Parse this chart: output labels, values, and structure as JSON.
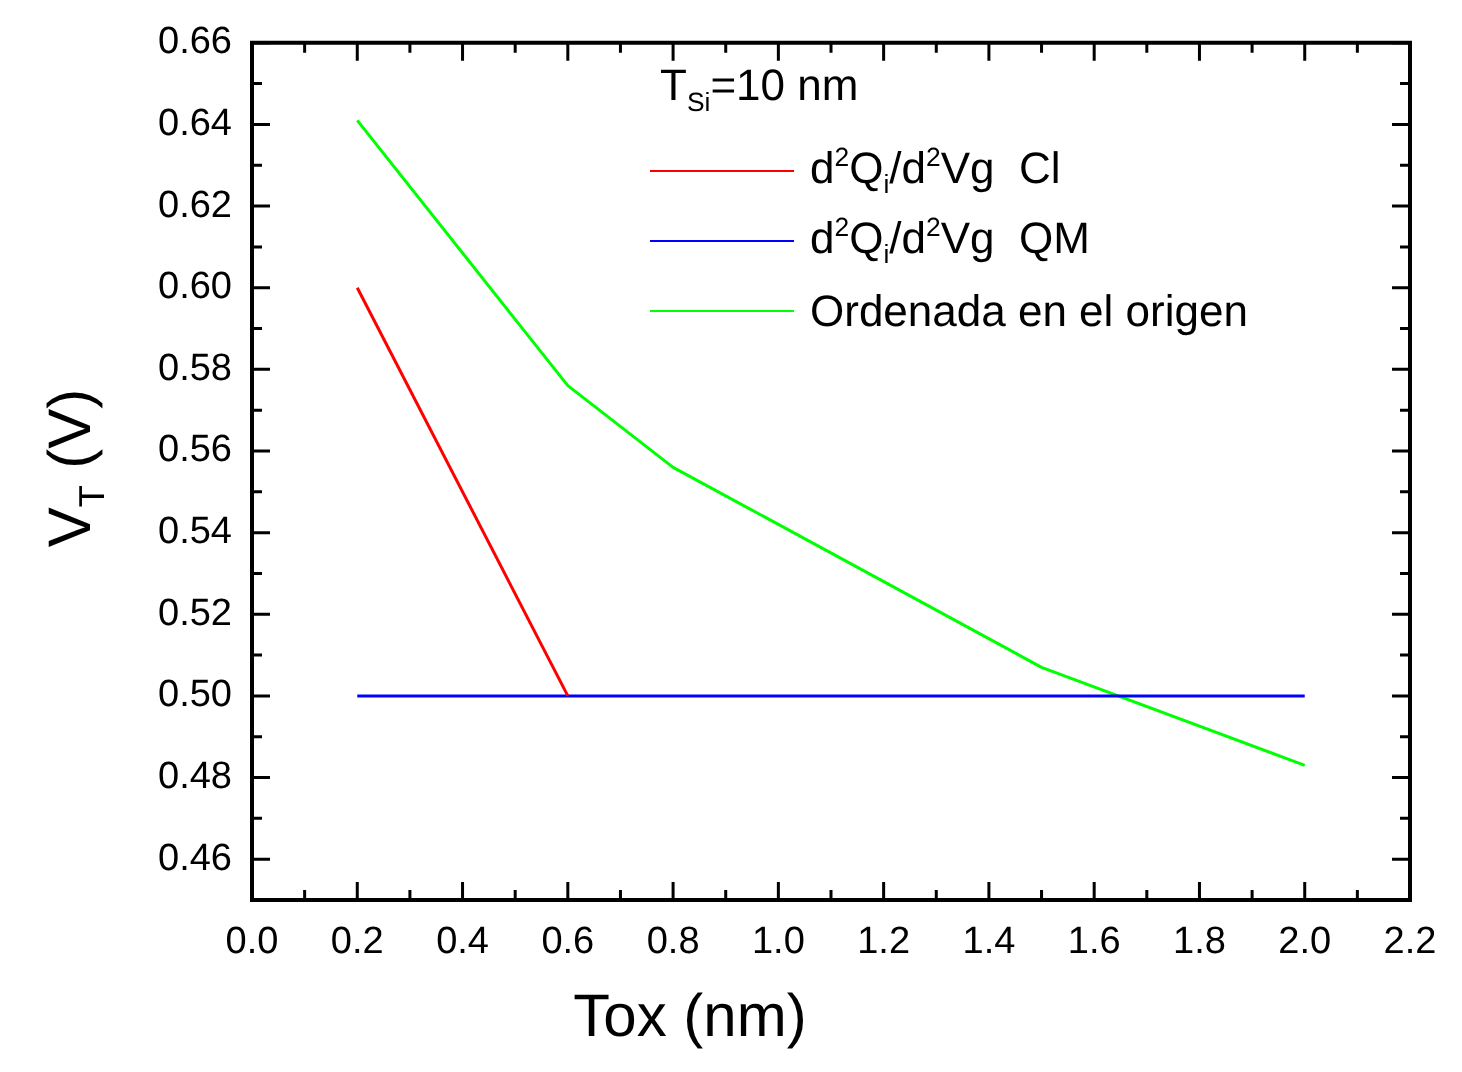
{
  "chart_data": {
    "type": "line",
    "xlabel": "Tox (nm)",
    "ylabel": "V$_{T}$ (V)",
    "legend_title": "T$_{Si}$=10 nm",
    "legend": "top right",
    "grid": false,
    "marker": "none",
    "line_style": "solid",
    "xlim": [
      0,
      2.2
    ],
    "ylim": [
      0.45,
      0.66
    ],
    "xticks": [
      {
        "value": 0,
        "label": "0.0"
      },
      {
        "value": 0.1,
        "label": null
      },
      {
        "value": 0.2,
        "label": "0.2"
      },
      {
        "value": 0.3,
        "label": null
      },
      {
        "value": 0.4,
        "label": "0.4"
      },
      {
        "value": 0.5,
        "label": null
      },
      {
        "value": 0.6,
        "label": "0.6"
      },
      {
        "value": 0.7,
        "label": null
      },
      {
        "value": 0.8,
        "label": "0.8"
      },
      {
        "value": 0.9,
        "label": null
      },
      {
        "value": 1,
        "label": "1.0"
      },
      {
        "value": 1.1,
        "label": null
      },
      {
        "value": 1.2,
        "label": "1.2"
      },
      {
        "value": 1.3,
        "label": null
      },
      {
        "value": 1.4,
        "label": "1.4"
      },
      {
        "value": 1.5,
        "label": null
      },
      {
        "value": 1.6,
        "label": "1.6"
      },
      {
        "value": 1.7,
        "label": null
      },
      {
        "value": 1.8,
        "label": "1.8"
      },
      {
        "value": 1.9,
        "label": null
      },
      {
        "value": 2,
        "label": "2.0"
      },
      {
        "value": 2.1,
        "label": null
      },
      {
        "value": 2.2,
        "label": "2.2"
      }
    ],
    "yticks": [
      {
        "value": 0.45,
        "label": null
      },
      0.46,
      {
        "value": 0.47,
        "label": null
      },
      0.48,
      {
        "value": 0.49,
        "label": null
      },
      {
        "value": 0.5,
        "label": "0.50"
      },
      {
        "value": 0.51,
        "label": null
      },
      0.52,
      {
        "value": 0.53,
        "label": null
      },
      0.54,
      {
        "value": 0.55,
        "label": null
      },
      0.56,
      {
        "value": 0.57,
        "label": null
      },
      0.58,
      {
        "value": 0.59,
        "label": null
      },
      {
        "value": 0.6,
        "label": "0.60"
      },
      {
        "value": 0.61,
        "label": null
      },
      0.62,
      {
        "value": 0.63,
        "label": null
      },
      0.64,
      {
        "value": 0.65,
        "label": null
      },
      0.66
    ],
    "series": [
      {
        "name": "d$^{2}$Q$_{i}$/d$^{2}$Vg  Cl",
        "color": "#ff0000",
        "x": [
          0.2,
          0.6
        ],
        "values": [
          0.6,
          0.5
        ]
      },
      {
        "name": "d$^{2}$Q$_{i}$/d$^{2}$Vg  QM",
        "color": "#0000ff",
        "x": [
          0.2,
          2.0
        ],
        "values": [
          0.5,
          0.5
        ]
      },
      {
        "name": "Ordenada en el origen",
        "color": "#00ff00",
        "x": [
          0.2,
          0.6,
          0.8,
          1.5,
          2.0
        ],
        "values": [
          0.641,
          0.576,
          0.556,
          0.507,
          0.483
        ]
      }
    ]
  }
}
